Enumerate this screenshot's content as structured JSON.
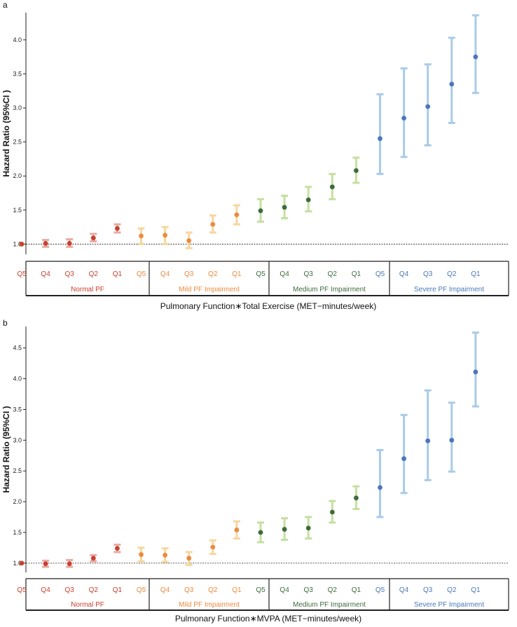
{
  "colors": {
    "normal_err": "#e8aaa3",
    "normal_pt": "#c9412e",
    "mild_err": "#f6d7a0",
    "mild_pt": "#ed8a3e",
    "medium_err": "#c6dfa0",
    "medium_pt": "#3e6b3e",
    "severe_err": "#a9cbe8",
    "severe_pt": "#4a78b8"
  },
  "chart_data": [
    {
      "type": "errorbar",
      "panel_label": "a",
      "ylabel": "Hazard Ratio (95%CI )",
      "xlabel": "Pulmonary Function∗Total Exercise (MET−minutes/week)",
      "ylim": [
        0.85,
        4.4
      ],
      "yticks": [
        "1.0",
        "1.5",
        "2.0",
        "2.5",
        "3.0",
        "3.5",
        "4.0"
      ],
      "reference_line": 1.0,
      "categories": [
        "Q5",
        "Q4",
        "Q3",
        "Q2",
        "Q1"
      ],
      "groups": [
        {
          "name": "Normal PF",
          "color_key": "normal",
          "hr": [
            1.0,
            1.01,
            1.01,
            1.09,
            1.23
          ],
          "lo": [
            1.0,
            0.96,
            0.96,
            1.04,
            1.17
          ],
          "hi": [
            1.0,
            1.06,
            1.07,
            1.15,
            1.29
          ]
        },
        {
          "name": "Mild PF Impairment",
          "color_key": "mild",
          "hr": [
            1.12,
            1.13,
            1.05,
            1.29,
            1.43
          ],
          "lo": [
            1.0,
            1.0,
            0.94,
            1.17,
            1.29
          ],
          "hi": [
            1.23,
            1.25,
            1.17,
            1.42,
            1.57
          ]
        },
        {
          "name": "Medium PF Impairment",
          "color_key": "medium",
          "hr": [
            1.49,
            1.54,
            1.65,
            1.84,
            2.08
          ],
          "lo": [
            1.33,
            1.38,
            1.48,
            1.66,
            1.9
          ],
          "hi": [
            1.66,
            1.71,
            1.84,
            2.03,
            2.27
          ]
        },
        {
          "name": "Severe PF Impairment",
          "color_key": "severe",
          "hr": [
            2.55,
            2.85,
            3.02,
            3.35,
            3.75
          ],
          "lo": [
            2.03,
            2.28,
            2.45,
            2.78,
            3.22
          ],
          "hi": [
            3.2,
            3.58,
            3.64,
            4.03,
            4.36
          ]
        }
      ]
    },
    {
      "type": "errorbar",
      "panel_label": "b",
      "ylabel": "Hazard Ratio (95%CI )",
      "xlabel": "Pulmonary Function∗MVPA (MET−minutes/week)",
      "ylim": [
        0.85,
        4.85
      ],
      "yticks": [
        "1.0",
        "1.5",
        "2.0",
        "2.5",
        "3.0",
        "3.5",
        "4.0",
        "4.5"
      ],
      "reference_line": 1.0,
      "categories": [
        "Q5",
        "Q4",
        "Q3",
        "Q2",
        "Q1"
      ],
      "groups": [
        {
          "name": "Normal PF",
          "color_key": "normal",
          "hr": [
            1.0,
            0.99,
            0.99,
            1.08,
            1.24
          ],
          "lo": [
            1.0,
            0.94,
            0.94,
            1.03,
            1.18
          ],
          "hi": [
            1.0,
            1.04,
            1.05,
            1.13,
            1.3
          ]
        },
        {
          "name": "Mild PF Impairment",
          "color_key": "mild",
          "hr": [
            1.14,
            1.13,
            1.08,
            1.26,
            1.54
          ],
          "lo": [
            1.03,
            1.02,
            0.97,
            1.15,
            1.4
          ],
          "hi": [
            1.25,
            1.24,
            1.18,
            1.37,
            1.68
          ]
        },
        {
          "name": "Medium PF Impairment",
          "color_key": "medium",
          "hr": [
            1.5,
            1.55,
            1.57,
            1.83,
            2.06
          ],
          "lo": [
            1.34,
            1.38,
            1.4,
            1.66,
            1.88
          ],
          "hi": [
            1.66,
            1.73,
            1.75,
            2.01,
            2.25
          ]
        },
        {
          "name": "Severe PF Impairment",
          "color_key": "severe",
          "hr": [
            2.23,
            2.7,
            2.99,
            3.0,
            4.11
          ],
          "lo": [
            1.75,
            2.14,
            2.35,
            2.49,
            3.55
          ],
          "hi": [
            2.84,
            3.41,
            3.81,
            3.61,
            4.75
          ]
        }
      ]
    }
  ]
}
